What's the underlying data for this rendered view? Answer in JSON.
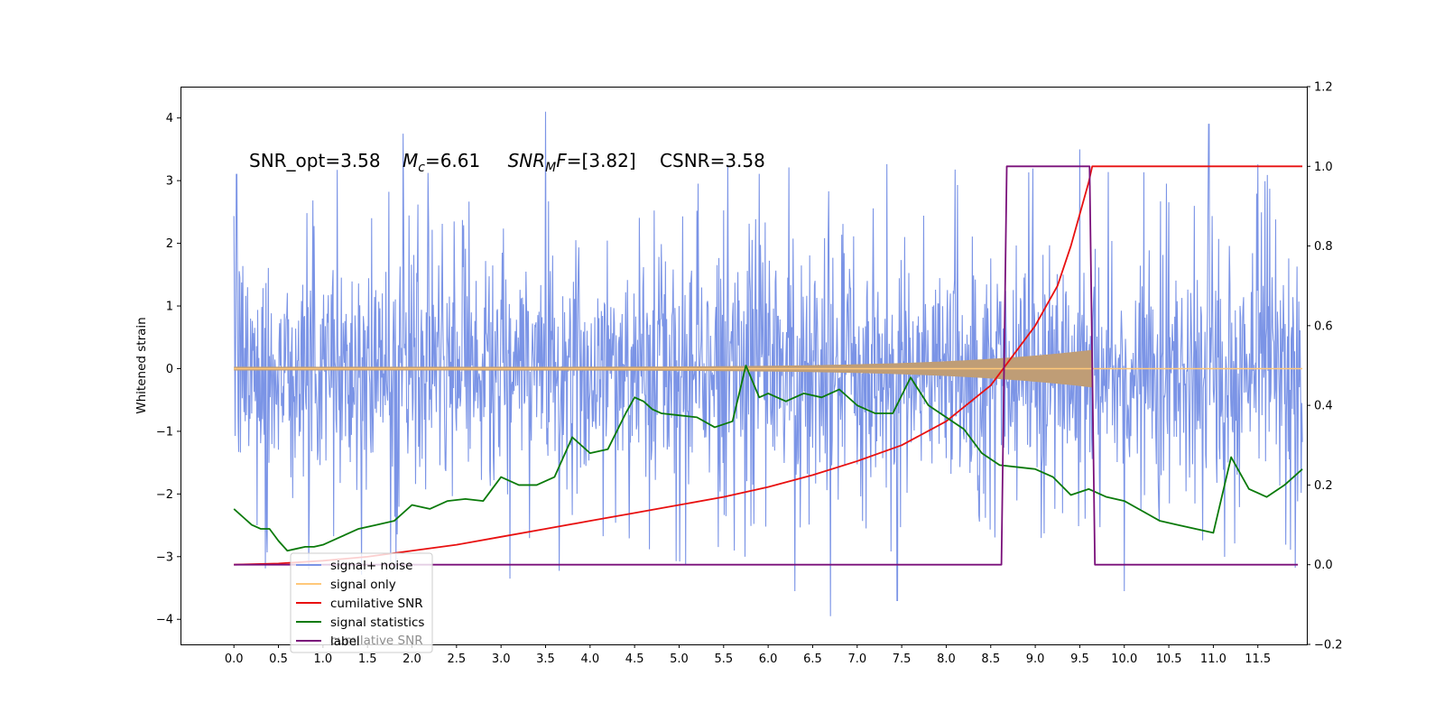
{
  "chart_data": {
    "type": "line",
    "ylabel_left": "Whitened strain",
    "ylim_left": [
      -4.4,
      4.5
    ],
    "ylim_right": [
      -0.2,
      1.2
    ],
    "xlim": [
      -0.6,
      12.05
    ],
    "x_ticks": [
      "0.0",
      "0.5",
      "1.0",
      "1.5",
      "2.0",
      "2.5",
      "3.0",
      "3.5",
      "4.0",
      "4.5",
      "5.0",
      "5.5",
      "6.0",
      "6.5",
      "7.0",
      "7.5",
      "8.0",
      "8.5",
      "9.0",
      "9.5",
      "10.0",
      "10.5",
      "11.0",
      "11.5"
    ],
    "y_ticks_left": [
      "4",
      "3",
      "2",
      "1",
      "0",
      "−1",
      "−2",
      "−3",
      "−4"
    ],
    "y_ticks_right": [
      "1.2",
      "1.0",
      "0.8",
      "0.6",
      "0.4",
      "0.2",
      "0.0",
      "−0.2"
    ],
    "annotation": {
      "p1": "SNR_opt=3.58",
      "p2_sym": "M",
      "p2_sub": "c",
      "p2_val": "=6.61",
      "p3_sym": "SNR",
      "p3_sub": "M",
      "p3_sym2": "F",
      "p3_val": "=[3.82]",
      "p4": "CSNR=3.58"
    },
    "legend": {
      "placement": "lower-left",
      "entries": [
        {
          "label": "signal+ noise",
          "color": "#7b94e6"
        },
        {
          "label": "signal only",
          "color": "#ffc87a"
        },
        {
          "label": "cumilative SNR",
          "color": "#e81010"
        },
        {
          "label": "signal statistics",
          "color": "#0a7a0a"
        },
        {
          "label": "label",
          "color": "#7a107a"
        }
      ],
      "overlap_text": "cumilative SNR"
    },
    "series": [
      {
        "name": "signal+ noise",
        "axis": "left",
        "color": "#7b94e6",
        "x_range": [
          0.0,
          12.0
        ],
        "envelope_abs": 2.3,
        "notable_peaks": [
          {
            "x": 0.03,
            "y": 3.1
          },
          {
            "x": 1.9,
            "y": 3.75
          },
          {
            "x": 3.5,
            "y": 4.1
          },
          {
            "x": 9.5,
            "y": 3.5
          },
          {
            "x": 10.95,
            "y": 3.9
          },
          {
            "x": 6.7,
            "y": -3.95
          },
          {
            "x": 7.45,
            "y": -3.7
          },
          {
            "x": 6.3,
            "y": -3.55
          },
          {
            "x": 10.0,
            "y": -3.55
          },
          {
            "x": 3.1,
            "y": -3.35
          }
        ]
      },
      {
        "name": "signal only",
        "axis": "left",
        "color": "#ffc87a",
        "chirp_end": 9.64,
        "envelope_start": 0.03,
        "envelope_end": 0.3
      },
      {
        "name": "cumilative SNR",
        "axis": "right",
        "color": "#e81010",
        "x": [
          0.0,
          0.5,
          1.0,
          1.5,
          2.0,
          2.5,
          3.0,
          3.5,
          4.0,
          4.5,
          5.0,
          5.5,
          6.0,
          6.5,
          7.0,
          7.5,
          8.0,
          8.5,
          9.0,
          9.25,
          9.4,
          9.5,
          9.6,
          9.64,
          9.65,
          10.0,
          11.0,
          12.0
        ],
        "y": [
          0.0,
          0.003,
          0.01,
          0.02,
          0.035,
          0.05,
          0.07,
          0.09,
          0.11,
          0.13,
          0.15,
          0.17,
          0.195,
          0.225,
          0.26,
          0.3,
          0.36,
          0.45,
          0.6,
          0.7,
          0.8,
          0.88,
          0.96,
          1.0,
          1.0,
          1.0,
          1.0,
          1.0
        ]
      },
      {
        "name": "signal statistics",
        "axis": "right",
        "color": "#0a7a0a",
        "x": [
          0.0,
          0.1,
          0.2,
          0.3,
          0.4,
          0.5,
          0.6,
          0.7,
          0.8,
          0.9,
          1.0,
          1.2,
          1.4,
          1.6,
          1.8,
          2.0,
          2.2,
          2.4,
          2.6,
          2.8,
          3.0,
          3.2,
          3.4,
          3.6,
          3.8,
          4.0,
          4.2,
          4.4,
          4.5,
          4.6,
          4.7,
          4.8,
          5.0,
          5.2,
          5.4,
          5.6,
          5.75,
          5.9,
          6.0,
          6.2,
          6.4,
          6.6,
          6.8,
          7.0,
          7.2,
          7.4,
          7.6,
          7.8,
          8.0,
          8.2,
          8.4,
          8.6,
          8.8,
          9.0,
          9.2,
          9.4,
          9.6,
          9.8,
          10.0,
          10.2,
          10.4,
          10.6,
          10.8,
          11.0,
          11.2,
          11.4,
          11.6,
          11.8,
          12.0
        ],
        "y": [
          0.14,
          0.12,
          0.1,
          0.09,
          0.09,
          0.06,
          0.035,
          0.04,
          0.045,
          0.045,
          0.05,
          0.07,
          0.09,
          0.1,
          0.11,
          0.15,
          0.14,
          0.16,
          0.165,
          0.16,
          0.22,
          0.2,
          0.2,
          0.22,
          0.32,
          0.28,
          0.29,
          0.38,
          0.42,
          0.41,
          0.39,
          0.38,
          0.375,
          0.37,
          0.345,
          0.36,
          0.5,
          0.42,
          0.43,
          0.41,
          0.43,
          0.42,
          0.44,
          0.4,
          0.38,
          0.38,
          0.47,
          0.4,
          0.37,
          0.34,
          0.28,
          0.25,
          0.245,
          0.24,
          0.22,
          0.175,
          0.19,
          0.17,
          0.16,
          0.135,
          0.11,
          0.1,
          0.09,
          0.08,
          0.27,
          0.19,
          0.17,
          0.2,
          0.24
        ]
      },
      {
        "name": "label",
        "axis": "right",
        "color": "#7a107a",
        "x": [
          0.0,
          8.62,
          8.68,
          9.61,
          9.67,
          11.95
        ],
        "y": [
          0.0,
          0.0,
          1.0,
          1.0,
          0.0,
          0.0
        ]
      }
    ]
  }
}
